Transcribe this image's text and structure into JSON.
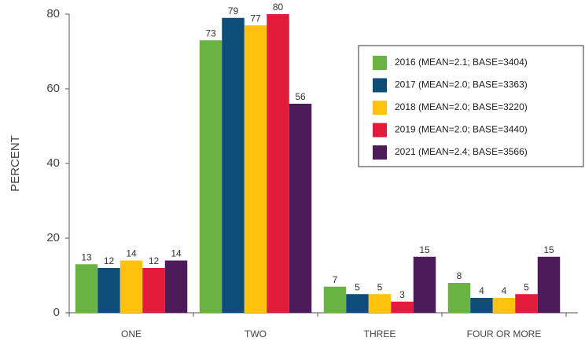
{
  "chart_data": {
    "type": "bar",
    "y_label": "PERCENT",
    "categories": [
      "ONE",
      "TWO",
      "THREE",
      "FOUR OR MORE"
    ],
    "series": [
      {
        "name": "2016 (MEAN=2.1; BASE=3404)",
        "color": "#6ab343",
        "values": [
          13,
          73,
          7,
          8
        ]
      },
      {
        "name": "2017 (MEAN=2.0; BASE=3363)",
        "color": "#0d4d78",
        "values": [
          12,
          79,
          5,
          4
        ]
      },
      {
        "name": "2018 (MEAN=2.0; BASE=3220)",
        "color": "#ffc20e",
        "values": [
          14,
          77,
          5,
          4
        ]
      },
      {
        "name": "2019 (MEAN=2.0; BASE=3440)",
        "color": "#e31b3a",
        "values": [
          12,
          80,
          3,
          5
        ]
      },
      {
        "name": "2021 (MEAN=2.4; BASE=3566)",
        "color": "#4d1a5a",
        "values": [
          14,
          56,
          15,
          15
        ]
      }
    ],
    "ylim": [
      0,
      80
    ],
    "yticks": [
      0,
      20,
      40,
      60,
      80
    ],
    "legend": "upper right"
  }
}
